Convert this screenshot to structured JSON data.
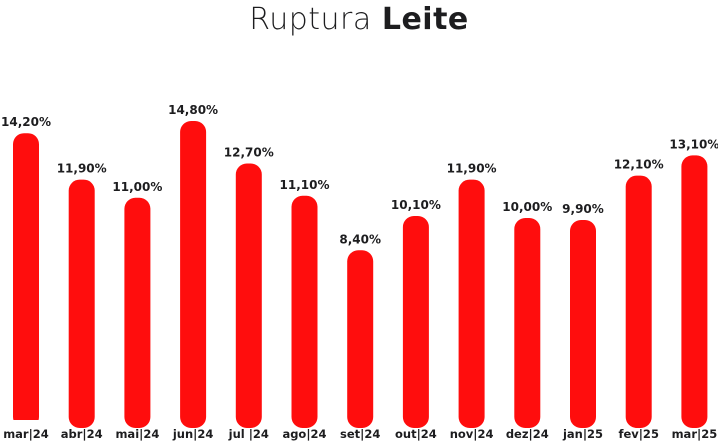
{
  "title": {
    "prefix": "Ruptura",
    "bold": "Leite"
  },
  "colors": {
    "bar": "#ff0d0d",
    "text": "#1d1d1f"
  },
  "chart_data": {
    "type": "bar",
    "title": "Ruptura Leite",
    "categories": [
      "mar|24",
      "abr|24",
      "mai|24",
      "jun|24",
      "jul |24",
      "ago|24",
      "set|24",
      "out|24",
      "nov|24",
      "dez|24",
      "jan|25",
      "fev|25",
      "mar|25"
    ],
    "values": [
      14.2,
      11.9,
      11.0,
      14.8,
      12.7,
      11.1,
      8.4,
      10.1,
      11.9,
      10.0,
      9.9,
      12.1,
      13.1
    ],
    "value_labels": [
      "14,20%",
      "11,90%",
      "11,00%",
      "14,80%",
      "12,70%",
      "11,10%",
      "8,40%",
      "10,10%",
      "11,90%",
      "10,00%",
      "9,90%",
      "12,10%",
      "13,10%"
    ],
    "xlabel": "",
    "ylabel": "",
    "ylim": [
      0,
      15
    ],
    "grid": false,
    "legend": "none"
  }
}
